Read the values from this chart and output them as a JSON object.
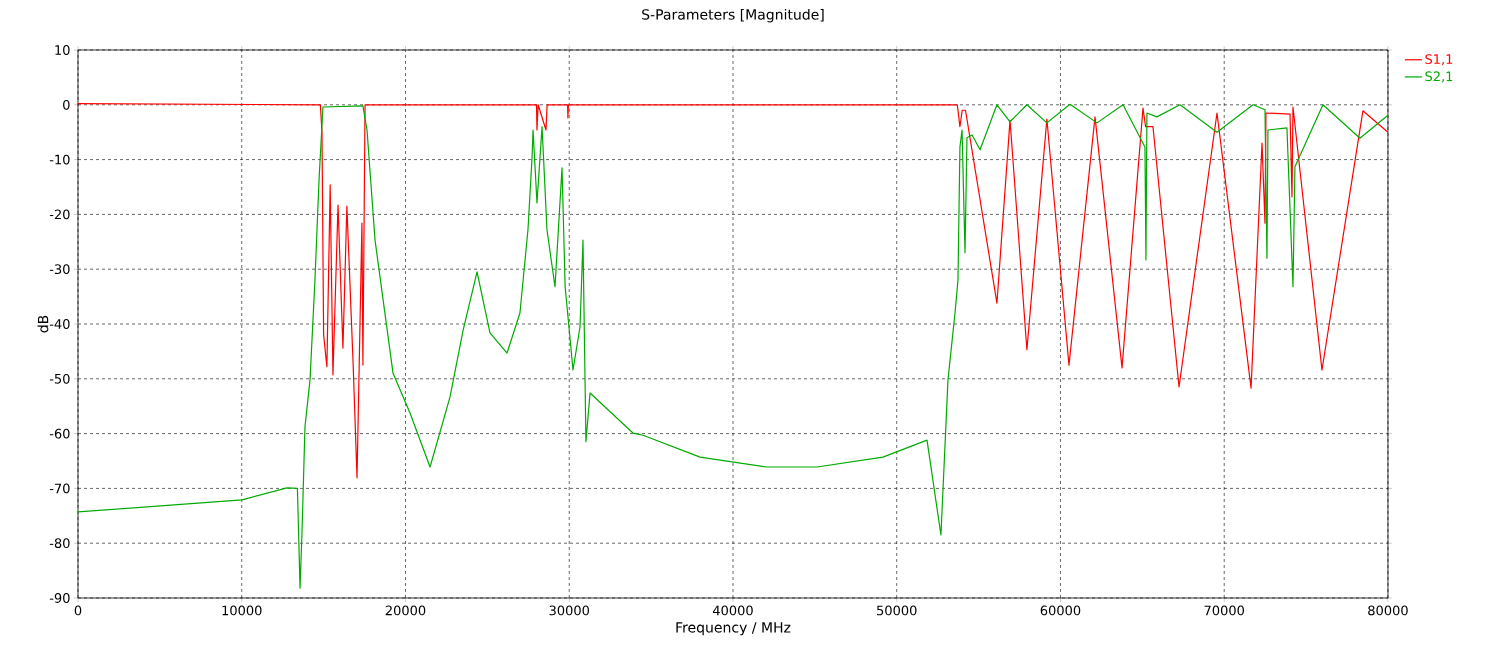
{
  "chart_data": {
    "type": "line",
    "title": "S-Parameters [Magnitude]",
    "xlabel": "Frequency / MHz",
    "ylabel": "dB",
    "xlim": [
      0,
      80000
    ],
    "ylim": [
      -90,
      10
    ],
    "xticks": [
      0,
      10000,
      20000,
      30000,
      40000,
      50000,
      60000,
      70000,
      80000
    ],
    "yticks": [
      -90,
      -80,
      -70,
      -60,
      -50,
      -40,
      -30,
      -20,
      -10,
      0,
      10
    ],
    "grid": true,
    "legend": "top right",
    "line_style": "solid",
    "marker": "none",
    "series": [
      {
        "name": "S1,1",
        "color": "#ff0000",
        "x": [
          0,
          14800,
          14900,
          15000,
          15200,
          15400,
          15570,
          15880,
          16180,
          16420,
          16800,
          17040,
          17340,
          17400,
          17530,
          28000,
          28030,
          28100,
          28580,
          28650,
          29900,
          29920,
          29950,
          53700,
          53860,
          54000,
          54200,
          56120,
          56920,
          57950,
          59170,
          60520,
          62110,
          63760,
          65040,
          65200,
          65650,
          67240,
          69560,
          71640,
          72310,
          72490,
          72550,
          74020,
          74140,
          74200,
          75970,
          78470,
          80000
        ],
        "values": [
          0.2,
          0,
          -5,
          -42,
          -47.8,
          -14.6,
          -49.3,
          -18.3,
          -44.4,
          -18.5,
          -47.1,
          -68.1,
          -21.6,
          -47.5,
          0,
          0,
          -4.6,
          0,
          -4.6,
          0,
          0,
          -2.4,
          0,
          0,
          -4,
          -1,
          -1,
          -36.2,
          -2.8,
          -44.7,
          -2.6,
          -47.5,
          -2.2,
          -48,
          -0.6,
          -4,
          -4,
          -51.5,
          -1.5,
          -51.7,
          -7,
          -21.6,
          -1.5,
          -1.7,
          -16.8,
          -0.4,
          -48.4,
          -1.1,
          -5
        ]
      },
      {
        "name": "S2,1",
        "color": "#00aa00",
        "x": [
          0,
          10010,
          12760,
          13400,
          13560,
          13680,
          13860,
          14170,
          14470,
          14720,
          14960,
          17400,
          17650,
          18140,
          19240,
          20270,
          21500,
          22720,
          23520,
          24370,
          25160,
          26200,
          26990,
          27480,
          27730,
          27790,
          28030,
          28340,
          28640,
          29130,
          29560,
          29750,
          30230,
          30660,
          30840,
          31020,
          31270,
          33890,
          34510,
          37990,
          42080,
          45130,
          49160,
          51850,
          52700,
          53130,
          53560,
          53740,
          53860,
          53990,
          54170,
          54290,
          54600,
          55090,
          56120,
          56920,
          57950,
          59170,
          60580,
          62230,
          63820,
          65160,
          65220,
          65280,
          65890,
          67300,
          69560,
          71760,
          72490,
          72610,
          72670,
          73830,
          74200,
          74320,
          76030,
          78290,
          80000
        ],
        "values": [
          -74.3,
          -72.1,
          -69.9,
          -70,
          -88.2,
          -78,
          -58.8,
          -50.2,
          -32,
          -13.7,
          -0.4,
          -0.2,
          -4.6,
          -24.7,
          -49,
          -56.2,
          -66.1,
          -53.3,
          -41.1,
          -30.5,
          -41.6,
          -45.3,
          -38,
          -22.8,
          -9.5,
          -4.6,
          -17.9,
          -4,
          -22.8,
          -33.2,
          -11.5,
          -33.2,
          -48.4,
          -40.5,
          -24.7,
          -61.5,
          -52.6,
          -59.9,
          -60.3,
          -64.3,
          -66.1,
          -66.1,
          -64.3,
          -61.2,
          -78.5,
          -50.2,
          -38,
          -32,
          -7.7,
          -4.6,
          -27,
          -6,
          -5.5,
          -8.2,
          0,
          -3.1,
          0,
          -3.3,
          0.1,
          -3.3,
          0,
          -7.7,
          -28.3,
          -1.5,
          -2.2,
          0,
          -5,
          0,
          -0.9,
          -28,
          -4.6,
          -4.2,
          -33.2,
          -11.3,
          0,
          -6.1,
          -1.9
        ]
      }
    ]
  }
}
